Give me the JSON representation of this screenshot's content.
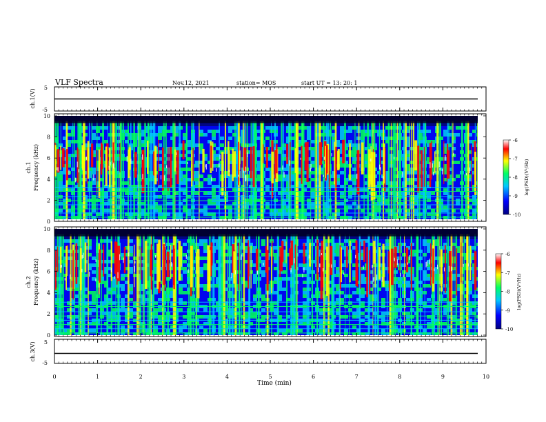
{
  "header": {
    "title": "VLF Spectra",
    "date": "Nov.12, 2021",
    "station": "station= MOS",
    "start": "start  UT =   13: 20: 1"
  },
  "chart_data": [
    {
      "type": "line",
      "panel": "ch1-waveform",
      "ylabel": "ch.1(V)",
      "ylim": [
        -5,
        5
      ],
      "yticks": [
        "5",
        "-5"
      ],
      "series": [
        {
          "values": [
            0
          ]
        }
      ]
    },
    {
      "type": "heatmap",
      "panel": "ch1-spectrogram",
      "ylabel_top": "ch.1",
      "ylabel": "Frequency  (kHz)",
      "ylim": [
        0,
        10
      ],
      "yticks": [
        "0",
        "2",
        "4",
        "6",
        "8",
        "10"
      ],
      "colorbar": {
        "label": "log(PSD)(V²/Hz)",
        "ticks": [
          "-6",
          "-7",
          "-8",
          "-9",
          "-10"
        ],
        "range": [
          -10,
          -6
        ]
      }
    },
    {
      "type": "heatmap",
      "panel": "ch2-spectrogram",
      "ylabel_top": "ch.2",
      "ylabel": "Frequency  (kHz)",
      "ylim": [
        0,
        10
      ],
      "yticks": [
        "0",
        "2",
        "4",
        "6",
        "8",
        "10"
      ],
      "colorbar": {
        "label": "log(PSD)(V²/Hz)",
        "ticks": [
          "-6",
          "-7",
          "-8",
          "-9",
          "-10"
        ],
        "range": [
          -10,
          -6
        ]
      }
    },
    {
      "type": "line",
      "panel": "ch3-waveform",
      "ylabel": "ch.3(V)",
      "ylim": [
        -5,
        5
      ],
      "yticks": [
        "5",
        "-5"
      ],
      "series": [
        {
          "values": [
            0
          ]
        }
      ]
    }
  ],
  "xaxis": {
    "label": "Time  (min)",
    "xlim": [
      0,
      10
    ],
    "ticks": [
      "0",
      "1",
      "2",
      "3",
      "4",
      "5",
      "6",
      "7",
      "8",
      "9",
      "10"
    ]
  },
  "colormap": [
    "#000080",
    "#0000ff",
    "#00c8ff",
    "#00ff64",
    "#ffff00",
    "#ff0000",
    "#ffffff"
  ]
}
